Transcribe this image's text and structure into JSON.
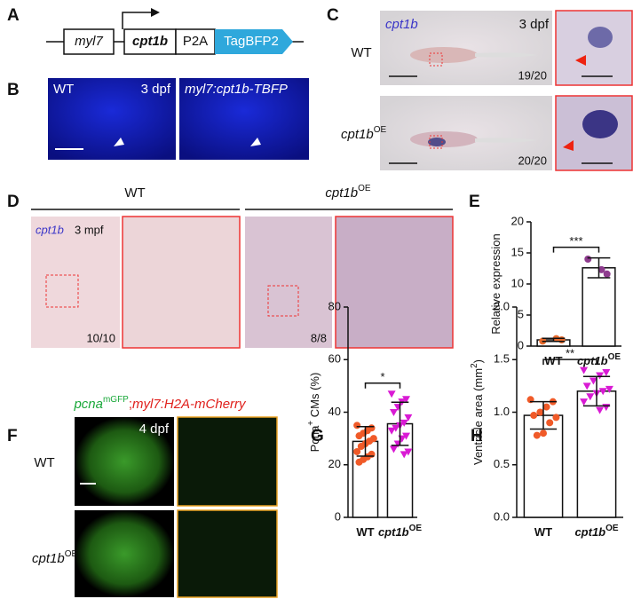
{
  "panel_letters": [
    "A",
    "B",
    "C",
    "D",
    "E",
    "F",
    "G",
    "H"
  ],
  "panel_A": {
    "promoter": "myl7",
    "gene": "cpt1b",
    "linker": "P2A",
    "reporter": "TagBFP2"
  },
  "panel_B": {
    "left": "WT",
    "stage": "3 dpf",
    "right": "myl7:cpt1b-TBFP"
  },
  "panel_C": {
    "probe": "cpt1b",
    "stage": "3 dpf",
    "row1": "WT",
    "count1": "19/20",
    "row2": "cpt1b",
    "row2_sup": "OE",
    "count2": "20/20"
  },
  "panel_D": {
    "left": "WT",
    "right": "cpt1b",
    "right_sup": "OE",
    "probe": "cpt1b",
    "stage": "3 mpf",
    "count1": "10/10",
    "count2": "8/8"
  },
  "panel_F": {
    "t1": "pcna",
    "t1_sup": "mGFP",
    "t2": ";",
    "t3": "myl7:H2A-mCherry",
    "stage": "4 dpf",
    "row1": "WT",
    "row2": "cpt1b",
    "row2_sup": "OE"
  },
  "chart_data": [
    {
      "type": "bar",
      "ylabel": [
        {
          "t": "Relative expression"
        }
      ],
      "categories": [
        [
          {
            "t": "WT"
          }
        ],
        [
          {
            "t": "cpt1b",
            "italic": true
          },
          {
            "t": "OE",
            "sup": true
          }
        ]
      ],
      "values": [
        1.0,
        12.6
      ],
      "errors": [
        0.25,
        1.6
      ],
      "points": [
        [
          0.8,
          1.0,
          1.2
        ],
        [
          14.0,
          11.6,
          12.3
        ]
      ],
      "colors": [
        "#e86a2c",
        "#8e3b8e"
      ],
      "markers": [
        "circle",
        "circle"
      ],
      "significance": "***",
      "ylim": [
        0,
        20
      ],
      "yticks": [
        0,
        5,
        10,
        15,
        20
      ]
    },
    {
      "type": "bar",
      "ylabel": [
        {
          "t": "Pcna"
        },
        {
          "t": "+",
          "sup": true
        },
        {
          "t": " CMs (%)"
        }
      ],
      "categories": [
        [
          {
            "t": "WT"
          }
        ],
        [
          {
            "t": "cpt1b",
            "italic": true
          },
          {
            "t": "OE",
            "sup": true
          }
        ]
      ],
      "values": [
        28.9,
        35.6
      ],
      "errors": [
        5.6,
        8.2
      ],
      "points": [
        [
          35,
          34,
          33,
          32,
          31,
          30,
          29,
          28,
          27,
          25,
          24,
          23,
          22,
          21
        ],
        [
          47,
          45,
          44,
          42,
          40,
          38,
          36,
          35,
          34,
          33,
          31,
          30,
          28,
          26,
          25,
          24
        ]
      ],
      "colors": [
        "#f05a28",
        "#d91ad4"
      ],
      "markers": [
        "circle",
        "triangle"
      ],
      "significance": "*",
      "ylim": [
        0,
        80
      ],
      "yticks": [
        0,
        20,
        40,
        60,
        80
      ]
    },
    {
      "type": "bar",
      "ylabel": [
        {
          "t": "Ventricle area (mm"
        },
        {
          "t": "2",
          "sup": true
        },
        {
          "t": ")"
        }
      ],
      "categories": [
        [
          {
            "t": "WT"
          }
        ],
        [
          {
            "t": "cpt1b",
            "italic": true
          },
          {
            "t": "OE",
            "sup": true
          }
        ]
      ],
      "values": [
        0.97,
        1.2
      ],
      "errors": [
        0.13,
        0.14
      ],
      "points": [
        [
          1.12,
          1.1,
          1.05,
          1.0,
          0.97,
          0.95,
          0.9,
          0.8,
          0.78
        ],
        [
          1.4,
          1.38,
          1.35,
          1.3,
          1.25,
          1.22,
          1.2,
          1.18,
          1.15,
          1.1,
          1.05,
          1.02
        ]
      ],
      "colors": [
        "#f05a28",
        "#d91ad4"
      ],
      "markers": [
        "circle",
        "triangle"
      ],
      "significance": "**",
      "ylim": [
        0,
        2.0
      ],
      "yticks": [
        {
          "value": 0,
          "label": "0.0"
        },
        {
          "value": 0.5,
          "label": "0.5"
        },
        {
          "value": 1.0,
          "label": "1.0"
        },
        {
          "value": 1.5,
          "label": "1.5"
        },
        {
          "value": 2.0,
          "label": "2.0"
        }
      ]
    }
  ]
}
